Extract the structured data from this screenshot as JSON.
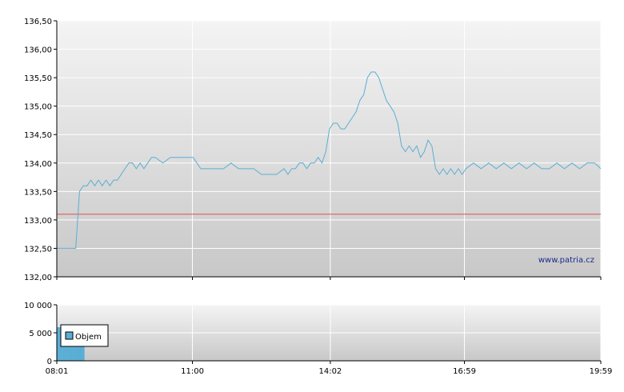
{
  "watermark": "www.patria.cz",
  "colors": {
    "price_line": "#5aaed4",
    "reference_line": "#e05050",
    "volume_bar": "#5aaed4",
    "grid": "#ffffff",
    "plot_bg_top": "#f4f4f4",
    "plot_bg_bottom": "#c8c8c8"
  },
  "chart_data": [
    {
      "type": "line",
      "title": "",
      "xlabel": "",
      "ylabel": "",
      "ylim": [
        132.0,
        136.5
      ],
      "y_ticks": [
        "132,00",
        "132,50",
        "133,00",
        "133,50",
        "134,00",
        "134,50",
        "135,00",
        "135,50",
        "136,00",
        "136,50"
      ],
      "grid": true,
      "reference_line": {
        "y": 133.1
      },
      "series": [
        {
          "x_minutes": [
            0,
            25,
            30,
            35,
            40,
            45,
            50,
            55,
            60,
            65,
            70,
            75,
            80,
            85,
            90,
            95,
            100,
            105,
            110,
            115,
            120,
            125,
            130,
            140,
            150,
            160,
            170,
            180,
            190,
            200,
            210,
            220,
            230,
            240,
            250,
            260,
            270,
            280,
            290,
            300,
            305,
            310,
            315,
            320,
            325,
            330,
            335,
            340,
            345,
            350,
            355,
            360,
            365,
            370,
            375,
            380,
            385,
            390,
            395,
            400,
            405,
            410,
            415,
            420,
            425,
            430,
            435,
            440,
            445,
            450,
            455,
            460,
            465,
            470,
            475,
            480,
            485,
            490,
            495,
            500,
            505,
            510,
            515,
            520,
            525,
            530,
            535,
            540,
            550,
            560,
            570,
            580,
            590,
            600,
            610,
            620,
            630,
            640,
            650,
            660,
            670,
            680,
            690,
            700,
            710,
            718
          ],
          "values": [
            132.5,
            132.5,
            133.5,
            133.6,
            133.6,
            133.7,
            133.6,
            133.7,
            133.6,
            133.7,
            133.6,
            133.7,
            133.7,
            133.8,
            133.9,
            134.0,
            134.0,
            133.9,
            134.0,
            133.9,
            134.0,
            134.1,
            134.1,
            134.0,
            134.1,
            134.1,
            134.1,
            134.1,
            133.9,
            133.9,
            133.9,
            133.9,
            134.0,
            133.9,
            133.9,
            133.9,
            133.8,
            133.8,
            133.8,
            133.9,
            133.8,
            133.9,
            133.9,
            134.0,
            134.0,
            133.9,
            134.0,
            134.0,
            134.1,
            134.0,
            134.2,
            134.6,
            134.7,
            134.7,
            134.6,
            134.6,
            134.7,
            134.8,
            134.9,
            135.1,
            135.2,
            135.5,
            135.6,
            135.6,
            135.5,
            135.3,
            135.1,
            135.0,
            134.9,
            134.7,
            134.3,
            134.2,
            134.3,
            134.2,
            134.3,
            134.1,
            134.2,
            134.4,
            134.3,
            133.9,
            133.8,
            133.9,
            133.8,
            133.9,
            133.8,
            133.9,
            133.8,
            133.9,
            134.0,
            133.9,
            134.0,
            133.9,
            134.0,
            133.9,
            134.0,
            133.9,
            134.0,
            133.9,
            133.9,
            134.0,
            133.9,
            134.0,
            133.9,
            134.0,
            134.0,
            133.9
          ]
        }
      ]
    },
    {
      "type": "bar",
      "title": "",
      "xlabel": "",
      "ylabel": "",
      "ylim": [
        0,
        10000
      ],
      "y_ticks": [
        "0",
        "5 000",
        "10 000"
      ],
      "x_ticks": [
        "08:01",
        "11:00",
        "14:02",
        "16:59",
        "19:59"
      ],
      "grid": true,
      "legend": {
        "position": "top-left",
        "entries": [
          "Objem"
        ]
      },
      "series": [
        {
          "name": "Objem",
          "x_minutes": [
            2,
            5,
            8,
            11,
            14,
            17,
            20,
            23,
            26,
            29,
            32,
            35
          ],
          "values": [
            6000,
            6000,
            6000,
            6000,
            6000,
            6000,
            6000,
            6000,
            6000,
            6000,
            6000,
            6000
          ]
        }
      ]
    }
  ]
}
